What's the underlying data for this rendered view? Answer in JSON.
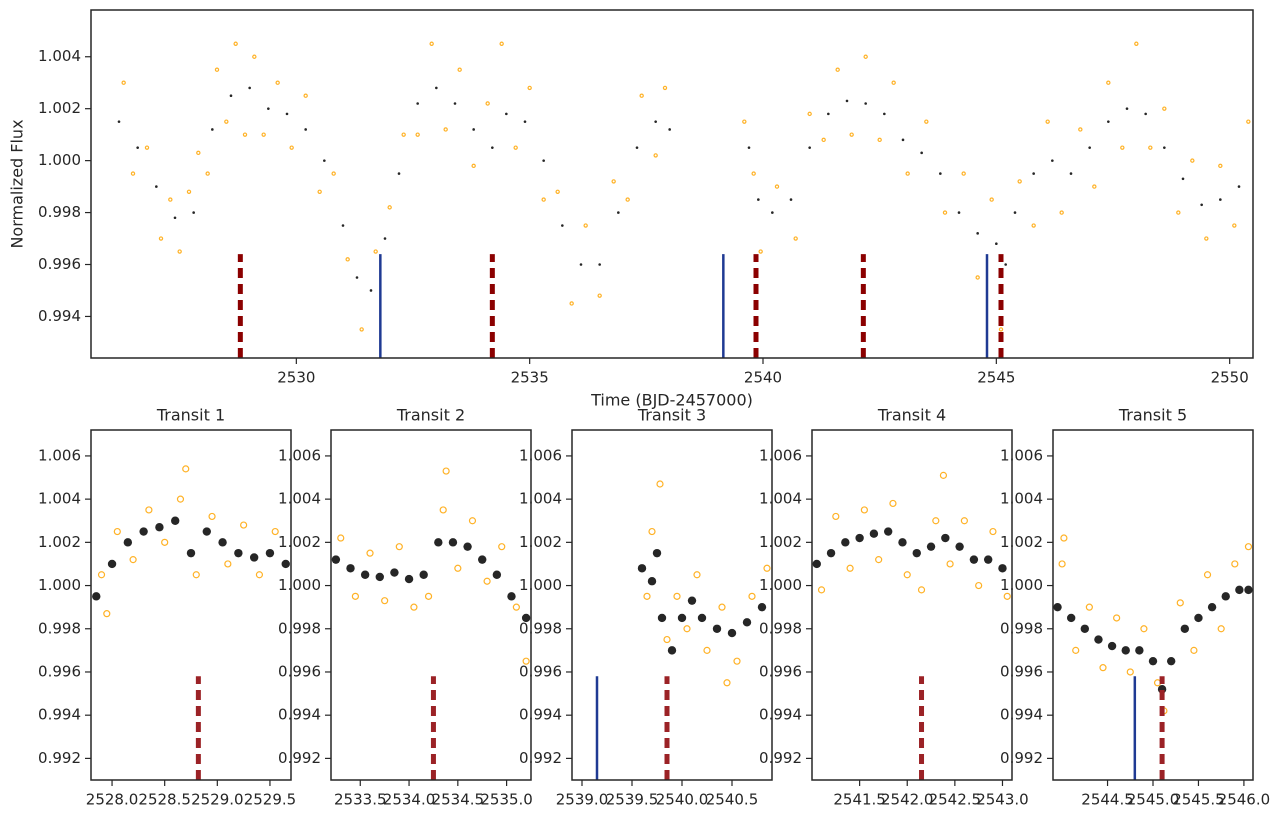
{
  "chart_data": [
    {
      "type": "scatter",
      "xlabel": "Time (BJD-2457000)",
      "ylabel": "Normalized Flux",
      "xlim": [
        2525.6,
        2550.5
      ],
      "ylim": [
        0.9924,
        1.0058
      ],
      "xticks": [
        2530,
        2535,
        2540,
        2545,
        2550
      ],
      "yticks": [
        0.994,
        0.996,
        0.998,
        {
          "value": 1,
          "label": "1.000"
        },
        1.002,
        1.004
      ],
      "series": [
        {
          "color": "#ffa500",
          "filled": false,
          "x": [
            2526.3,
            2526.5,
            2526.8,
            2527.1,
            2527.3,
            2527.5,
            2527.7,
            2527.9,
            2528.1,
            2528.3,
            2528.5,
            2528.7,
            2528.9,
            2529.1,
            2529.3,
            2529.6,
            2529.9,
            2530.2,
            2530.5,
            2530.8,
            2531.1,
            2531.4,
            2531.7,
            2532.0,
            2532.3,
            2532.6,
            2532.9,
            2533.2,
            2533.5,
            2533.8,
            2534.1,
            2534.4,
            2534.7,
            2535.0,
            2535.3,
            2535.6,
            2535.9,
            2536.2,
            2536.5,
            2536.8,
            2537.1,
            2537.4,
            2537.7,
            2537.9,
            2539.6,
            2539.8,
            2539.95,
            2540.3,
            2540.7,
            2541.0,
            2541.3,
            2541.6,
            2541.9,
            2542.2,
            2542.5,
            2542.8,
            2543.1,
            2543.5,
            2543.9,
            2544.3,
            2544.6,
            2544.9,
            2545.1,
            2545.5,
            2545.8,
            2546.1,
            2546.4,
            2546.8,
            2547.1,
            2547.4,
            2547.7,
            2548.0,
            2548.3,
            2548.6,
            2548.9,
            2549.2,
            2549.5,
            2549.8,
            2550.1,
            2550.4
          ],
          "values": [
            1.003,
            0.9995,
            1.0005,
            0.997,
            0.9985,
            0.9965,
            0.9988,
            1.0003,
            0.9995,
            1.0035,
            1.0015,
            1.0045,
            1.001,
            1.004,
            1.001,
            1.003,
            1.0005,
            1.0025,
            0.9988,
            0.9995,
            0.9962,
            0.9935,
            0.9965,
            0.9982,
            1.001,
            1.001,
            1.0045,
            1.0012,
            1.0035,
            0.9998,
            1.0022,
            1.0045,
            1.0005,
            1.0028,
            0.9985,
            0.9988,
            0.9945,
            0.9975,
            0.9948,
            0.9992,
            0.9985,
            1.0025,
            1.0002,
            1.0028,
            1.0015,
            0.9995,
            0.9965,
            0.999,
            0.997,
            1.0018,
            1.0008,
            1.0035,
            1.001,
            1.004,
            1.0008,
            1.003,
            0.9995,
            1.0015,
            0.998,
            0.9995,
            0.9955,
            0.9985,
            0.9935,
            0.9992,
            0.9975,
            1.0015,
            0.998,
            1.0012,
            0.999,
            1.003,
            1.0005,
            1.0045,
            1.0005,
            1.002,
            0.998,
            1,
            0.997,
            0.9998,
            0.9975,
            1.0015
          ]
        },
        {
          "color": "#1a1a1a",
          "filled": true,
          "x": [
            2526.2,
            2526.6,
            2527.0,
            2527.4,
            2527.8,
            2528.2,
            2528.6,
            2529.0,
            2529.4,
            2529.8,
            2530.2,
            2530.6,
            2531.0,
            2531.3,
            2531.6,
            2531.9,
            2532.2,
            2532.6,
            2533.0,
            2533.4,
            2533.8,
            2534.2,
            2534.5,
            2534.9,
            2535.3,
            2535.7,
            2536.1,
            2536.5,
            2536.9,
            2537.3,
            2537.7,
            2538.0,
            2539.7,
            2539.9,
            2540.2,
            2540.6,
            2541.0,
            2541.4,
            2541.8,
            2542.2,
            2542.6,
            2543.0,
            2543.4,
            2543.8,
            2544.2,
            2544.6,
            2545.0,
            2545.2,
            2545.4,
            2545.8,
            2546.2,
            2546.6,
            2547.0,
            2547.4,
            2547.8,
            2548.2,
            2548.6,
            2549.0,
            2549.4,
            2549.8,
            2550.2
          ],
          "values": [
            1.0015,
            1.0005,
            0.999,
            0.9978,
            0.998,
            1.0012,
            1.0025,
            1.0028,
            1.002,
            1.0018,
            1.0012,
            1,
            0.9975,
            0.9955,
            0.995,
            0.997,
            0.9995,
            1.0022,
            1.0028,
            1.0022,
            1.0012,
            1.0005,
            1.0018,
            1.0015,
            1,
            0.9975,
            0.996,
            0.996,
            0.998,
            1.0005,
            1.0015,
            1.0012,
            1.0005,
            0.9985,
            0.998,
            0.9985,
            1.0005,
            1.0018,
            1.0023,
            1.0022,
            1.0018,
            1.0008,
            1.0003,
            0.9995,
            0.998,
            0.9972,
            0.9968,
            0.996,
            0.998,
            0.9995,
            1,
            0.9995,
            1.0005,
            1.0015,
            1.002,
            1.0018,
            1.0005,
            0.9993,
            0.9983,
            0.9985,
            0.999
          ]
        }
      ],
      "vlines": [
        {
          "color": "#8b0000",
          "dashed": true,
          "x": [
            2528.8,
            2534.2,
            2539.85,
            2542.15,
            2545.1
          ],
          "ytop": 0.9964
        },
        {
          "color": "#1f3a93",
          "dashed": false,
          "x": [
            2531.8,
            2539.15,
            2544.8
          ],
          "ytop": 0.9964
        }
      ]
    },
    {
      "type": "scatter",
      "title": "Transit 1",
      "xlim": [
        2527.8,
        2529.7
      ],
      "ylim": [
        0.991,
        1.0072
      ],
      "xticks": [
        {
          "value": 2528,
          "label": "2528.0"
        },
        2528.5,
        {
          "value": 2529,
          "label": "2529.0"
        },
        2529.5
      ],
      "yticks": [
        0.992,
        0.994,
        0.996,
        0.998,
        {
          "value": 1,
          "label": "1.000"
        },
        1.002,
        1.004,
        1.006
      ],
      "series": [
        {
          "color": "#ffa500",
          "filled": false,
          "x": [
            2527.9,
            2528.05,
            2528.2,
            2528.35,
            2528.5,
            2528.65,
            2528.8,
            2528.95,
            2529.1,
            2529.25,
            2529.4,
            2529.55,
            2528.7,
            2527.95
          ],
          "values": [
            1.0005,
            1.0025,
            1.0012,
            1.0035,
            1.002,
            1.004,
            1.0005,
            1.0032,
            1.001,
            1.0028,
            1.0005,
            1.0025,
            1.0054,
            0.9987
          ]
        },
        {
          "color": "#1a1a1a",
          "filled": true,
          "x": [
            2527.85,
            2528.0,
            2528.15,
            2528.3,
            2528.45,
            2528.6,
            2528.75,
            2528.9,
            2529.05,
            2529.2,
            2529.35,
            2529.5,
            2529.65
          ],
          "values": [
            0.9995,
            1.001,
            1.002,
            1.0025,
            1.0027,
            1.003,
            1.0015,
            1.0025,
            1.002,
            1.0015,
            1.0013,
            1.0015,
            1.001
          ]
        }
      ],
      "vlines": [
        {
          "color": "#9b2226",
          "dashed": true,
          "x": [
            2528.82
          ],
          "ytop": 0.9958
        }
      ]
    },
    {
      "type": "scatter",
      "title": "Transit 2",
      "xlim": [
        2533.2,
        2535.25
      ],
      "ylim": [
        0.991,
        1.0072
      ],
      "xticks": [
        2533.5,
        {
          "value": 2534,
          "label": "2534.0"
        },
        2534.5,
        {
          "value": 2535,
          "label": "2535.0"
        }
      ],
      "yticks": [
        0.992,
        0.994,
        0.996,
        0.998,
        {
          "value": 1,
          "label": "1.000"
        },
        1.002,
        1.004,
        1.006
      ],
      "series": [
        {
          "color": "#ffa500",
          "filled": false,
          "x": [
            2533.3,
            2533.45,
            2533.6,
            2533.75,
            2533.9,
            2534.05,
            2534.2,
            2534.35,
            2534.5,
            2534.65,
            2534.8,
            2534.95,
            2535.1,
            2535.2,
            2534.38
          ],
          "values": [
            1.0022,
            0.9995,
            1.0015,
            0.9993,
            1.0018,
            0.999,
            0.9995,
            1.0035,
            1.0008,
            1.003,
            1.0002,
            1.0018,
            0.999,
            0.9965,
            1.0053
          ]
        },
        {
          "color": "#1a1a1a",
          "filled": true,
          "x": [
            2533.25,
            2533.4,
            2533.55,
            2533.7,
            2533.85,
            2534.0,
            2534.15,
            2534.3,
            2534.45,
            2534.6,
            2534.75,
            2534.9,
            2535.05,
            2535.2
          ],
          "values": [
            1.0012,
            1.0008,
            1.0005,
            1.0004,
            1.0006,
            1.0003,
            1.0005,
            1.002,
            1.002,
            1.0018,
            1.0012,
            1.0005,
            0.9995,
            0.9985
          ]
        }
      ],
      "vlines": [
        {
          "color": "#9b2226",
          "dashed": true,
          "x": [
            2534.25
          ],
          "ytop": 0.9958
        }
      ]
    },
    {
      "type": "scatter",
      "title": "Transit 3",
      "xlim": [
        2538.9,
        2540.9
      ],
      "ylim": [
        0.991,
        1.0072
      ],
      "xticks": [
        {
          "value": 2539,
          "label": "2539.0"
        },
        2539.5,
        {
          "value": 2540,
          "label": "2540.0"
        },
        2540.5
      ],
      "yticks": [
        0.992,
        0.994,
        0.996,
        0.998,
        {
          "value": 1,
          "label": "1.000"
        },
        1.002,
        1.004,
        1.006
      ],
      "series": [
        {
          "color": "#ffa500",
          "filled": false,
          "x": [
            2539.65,
            2539.7,
            2539.78,
            2539.85,
            2539.95,
            2540.05,
            2540.15,
            2540.25,
            2540.4,
            2540.55,
            2540.7,
            2540.85,
            2540.45
          ],
          "values": [
            0.9995,
            1.0025,
            1.0047,
            0.9975,
            0.9995,
            0.998,
            1.0005,
            0.997,
            0.999,
            0.9965,
            0.9995,
            1.0008,
            0.9955
          ]
        },
        {
          "color": "#1a1a1a",
          "filled": true,
          "x": [
            2539.6,
            2539.7,
            2539.75,
            2539.8,
            2539.9,
            2540.0,
            2540.1,
            2540.2,
            2540.35,
            2540.5,
            2540.65,
            2540.8
          ],
          "values": [
            1.0008,
            1.0002,
            1.0015,
            0.9985,
            0.997,
            0.9985,
            0.9993,
            0.9985,
            0.998,
            0.9978,
            0.9983,
            0.999
          ]
        }
      ],
      "vlines": [
        {
          "color": "#1f3a93",
          "dashed": false,
          "x": [
            2539.15
          ],
          "ytop": 0.9958
        },
        {
          "color": "#9b2226",
          "dashed": true,
          "x": [
            2539.85
          ],
          "ytop": 0.9958
        }
      ]
    },
    {
      "type": "scatter",
      "title": "Transit 4",
      "xlim": [
        2541.0,
        2543.1
      ],
      "ylim": [
        0.991,
        1.0072
      ],
      "xticks": [
        2541.5,
        {
          "value": 2542,
          "label": "2542.0"
        },
        2542.5,
        {
          "value": 2543,
          "label": "2543.0"
        }
      ],
      "yticks": [
        0.992,
        0.994,
        0.996,
        0.998,
        {
          "value": 1,
          "label": "1.000"
        },
        1.002,
        1.004,
        1.006
      ],
      "series": [
        {
          "color": "#ffa500",
          "filled": false,
          "x": [
            2541.1,
            2541.25,
            2541.4,
            2541.55,
            2541.7,
            2541.85,
            2542.0,
            2542.15,
            2542.3,
            2542.45,
            2542.6,
            2542.75,
            2542.9,
            2543.05,
            2542.38
          ],
          "values": [
            0.9998,
            1.0032,
            1.0008,
            1.0035,
            1.0012,
            1.0038,
            1.0005,
            0.9998,
            1.003,
            1.001,
            1.003,
            1,
            1.0025,
            0.9995,
            1.0051
          ]
        },
        {
          "color": "#1a1a1a",
          "filled": true,
          "x": [
            2541.05,
            2541.2,
            2541.35,
            2541.5,
            2541.65,
            2541.8,
            2541.95,
            2542.1,
            2542.25,
            2542.4,
            2542.55,
            2542.7,
            2542.85,
            2543.0
          ],
          "values": [
            1.001,
            1.0015,
            1.002,
            1.0022,
            1.0024,
            1.0025,
            1.002,
            1.0015,
            1.0018,
            1.0022,
            1.0018,
            1.0012,
            1.0012,
            1.0008
          ]
        }
      ],
      "vlines": [
        {
          "color": "#9b2226",
          "dashed": true,
          "x": [
            2542.15
          ],
          "ytop": 0.9958
        }
      ]
    },
    {
      "type": "scatter",
      "title": "Transit 5",
      "xlim": [
        2543.9,
        2546.1
      ],
      "ylim": [
        0.991,
        1.0072
      ],
      "xticks": [
        2544.5,
        {
          "value": 2545,
          "label": "2545.0"
        },
        2545.5,
        {
          "value": 2546,
          "label": "2546.0"
        }
      ],
      "yticks": [
        0.992,
        0.994,
        0.996,
        0.998,
        {
          "value": 1,
          "label": "1.000"
        },
        1.002,
        1.004,
        1.006
      ],
      "series": [
        {
          "color": "#ffa500",
          "filled": false,
          "x": [
            2544.0,
            2544.15,
            2544.3,
            2544.45,
            2544.6,
            2544.75,
            2544.9,
            2545.05,
            2545.12,
            2545.3,
            2545.45,
            2545.6,
            2545.75,
            2545.9,
            2546.05,
            2544.02
          ],
          "values": [
            1.001,
            0.997,
            0.999,
            0.9962,
            0.9985,
            0.996,
            0.998,
            0.9955,
            0.9942,
            0.9992,
            0.997,
            1.0005,
            0.998,
            1.001,
            1.0018,
            1.0022
          ]
        },
        {
          "color": "#1a1a1a",
          "filled": true,
          "x": [
            2543.95,
            2544.1,
            2544.25,
            2544.4,
            2544.55,
            2544.7,
            2544.85,
            2545.0,
            2545.1,
            2545.2,
            2545.35,
            2545.5,
            2545.65,
            2545.8,
            2545.95,
            2546.05
          ],
          "values": [
            0.999,
            0.9985,
            0.998,
            0.9975,
            0.9972,
            0.997,
            0.997,
            0.9965,
            0.9952,
            0.9965,
            0.998,
            0.9985,
            0.999,
            0.9995,
            0.9998,
            0.9998
          ]
        }
      ],
      "vlines": [
        {
          "color": "#1f3a93",
          "dashed": false,
          "x": [
            2544.8
          ],
          "ytop": 0.9958
        },
        {
          "color": "#9b2226",
          "dashed": true,
          "x": [
            2545.1
          ],
          "ytop": 0.9958
        }
      ]
    }
  ]
}
